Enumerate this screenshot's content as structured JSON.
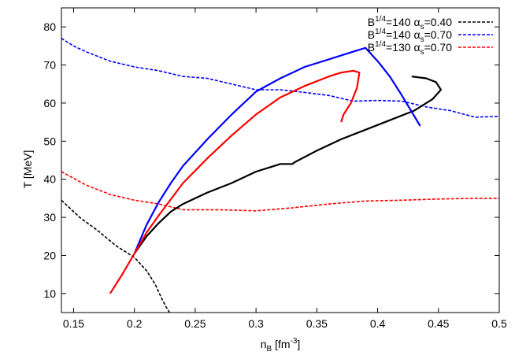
{
  "chart_data": {
    "type": "line",
    "xlabel": "n_B [fm^-3]",
    "ylabel": "T [MeV]",
    "xlim": [
      0.14,
      0.5
    ],
    "ylim": [
      5,
      85
    ],
    "xticks": [
      0.15,
      0.2,
      0.25,
      0.3,
      0.35,
      0.4,
      0.45,
      0.5
    ],
    "yticks": [
      10,
      20,
      30,
      40,
      50,
      60,
      70,
      80
    ],
    "xtick_labels": [
      "0.15",
      "0.2",
      "0.25",
      "0.3",
      "0.35",
      "0.4",
      "0.45",
      "0.5"
    ],
    "ytick_labels": [
      "10",
      "20",
      "30",
      "40",
      "50",
      "60",
      "70",
      "80"
    ],
    "grid": false,
    "legend_position": "top-right",
    "series": [
      {
        "name": "B1/4=140 αs=0.40",
        "legend_main": "B",
        "legend_sup": "1/4",
        "legend_mid": "=140",
        "legend_alpha": "α",
        "legend_sub": "s",
        "legend_tail": "=0.40",
        "color": "#000000",
        "dash": true,
        "x": [
          0.14,
          0.155,
          0.17,
          0.185,
          0.2,
          0.21,
          0.217,
          0.222,
          0.226,
          0.229
        ],
        "y": [
          34.5,
          30,
          26.5,
          22.5,
          19.5,
          16,
          12.5,
          9,
          6.5,
          5
        ]
      },
      {
        "name": "B1/4=140 αs=0.70",
        "legend_main": "B",
        "legend_sup": "1/4",
        "legend_mid": "=140",
        "legend_alpha": "α",
        "legend_sub": "s",
        "legend_tail": "=0.70",
        "color": "#0000ff",
        "dash": true,
        "x": [
          0.14,
          0.15,
          0.16,
          0.18,
          0.2,
          0.22,
          0.24,
          0.26,
          0.28,
          0.3,
          0.32,
          0.34,
          0.36,
          0.38,
          0.4,
          0.42,
          0.44,
          0.46,
          0.48,
          0.5
        ],
        "y": [
          77,
          75,
          73.5,
          71,
          69.5,
          68.5,
          67,
          66.5,
          65,
          63.5,
          63.5,
          62.8,
          62,
          60.5,
          60.7,
          60.5,
          59,
          58,
          56.3,
          56.5
        ]
      },
      {
        "name": "B1/4=130 αs=0.70",
        "legend_main": "B",
        "legend_sup": "1/4",
        "legend_mid": "=130",
        "legend_alpha": "α",
        "legend_sub": "s",
        "legend_tail": "=0.70",
        "color": "#ff0000",
        "dash": true,
        "x": [
          0.14,
          0.16,
          0.18,
          0.2,
          0.22,
          0.24,
          0.27,
          0.3,
          0.33,
          0.36,
          0.39,
          0.42,
          0.45,
          0.48,
          0.5
        ],
        "y": [
          42,
          38.5,
          36,
          34.5,
          33.5,
          32,
          32,
          31.7,
          32.5,
          33.5,
          34.3,
          34.5,
          34.8,
          35,
          35
        ]
      },
      {
        "color": "#000000",
        "dash": false,
        "x": [
          0.2,
          0.21,
          0.22,
          0.23,
          0.24,
          0.26,
          0.28,
          0.3,
          0.31,
          0.32,
          0.33,
          0.332,
          0.35,
          0.37,
          0.39,
          0.41,
          0.43,
          0.445,
          0.452,
          0.448,
          0.44,
          0.428
        ],
        "y": [
          20.5,
          25,
          28.5,
          31.5,
          33.5,
          36.5,
          39,
          42,
          43,
          44,
          44,
          44.5,
          47.5,
          50.5,
          53,
          55.5,
          58,
          61,
          63.5,
          65.5,
          66.5,
          67
        ]
      },
      {
        "color": "#0000ff",
        "dash": false,
        "x": [
          0.2,
          0.21,
          0.22,
          0.23,
          0.24,
          0.26,
          0.28,
          0.3,
          0.32,
          0.34,
          0.36,
          0.38,
          0.39,
          0.4,
          0.41,
          0.42,
          0.435
        ],
        "y": [
          20.5,
          28,
          34,
          39,
          43.5,
          50.5,
          57,
          63,
          66.5,
          69.5,
          71.5,
          73.5,
          74.5,
          71,
          67,
          62,
          54
        ]
      },
      {
        "color": "#ff0000",
        "dash": false,
        "x": [
          0.18,
          0.19,
          0.2,
          0.21,
          0.22,
          0.24,
          0.26,
          0.28,
          0.3,
          0.32,
          0.34,
          0.36,
          0.37,
          0.38,
          0.385,
          0.383,
          0.378,
          0.372,
          0.37
        ],
        "y": [
          10,
          15,
          20.5,
          26,
          30.5,
          39,
          45.5,
          51.5,
          57,
          61.5,
          64.5,
          67,
          68,
          68.5,
          68,
          64,
          60,
          57,
          55
        ]
      }
    ]
  }
}
